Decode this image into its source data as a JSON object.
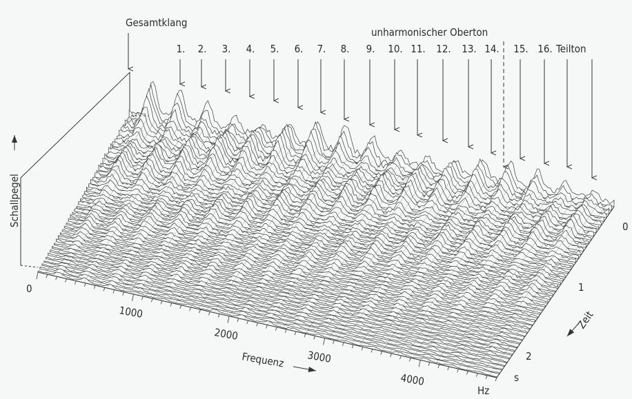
{
  "labels": {
    "overall": "Gesamtklang",
    "inharmonic": "unharmonischer Oberton",
    "partials": [
      "1.",
      "2.",
      "3.",
      "4.",
      "5.",
      "6.",
      "7.",
      "8.",
      "9.",
      "10.",
      "11.",
      "12.",
      "13.",
      "14.",
      "15.",
      "16."
    ],
    "partial_suffix": "Teilton"
  },
  "axes": {
    "level": "Schallpegel",
    "frequency": "Frequenz",
    "frequency_ticks": [
      "0",
      "1000",
      "2000",
      "3000",
      "4000"
    ],
    "frequency_unit": "Hz",
    "time": "Zeit",
    "time_ticks": [
      "0",
      "1",
      "2"
    ],
    "time_unit": "s"
  }
}
